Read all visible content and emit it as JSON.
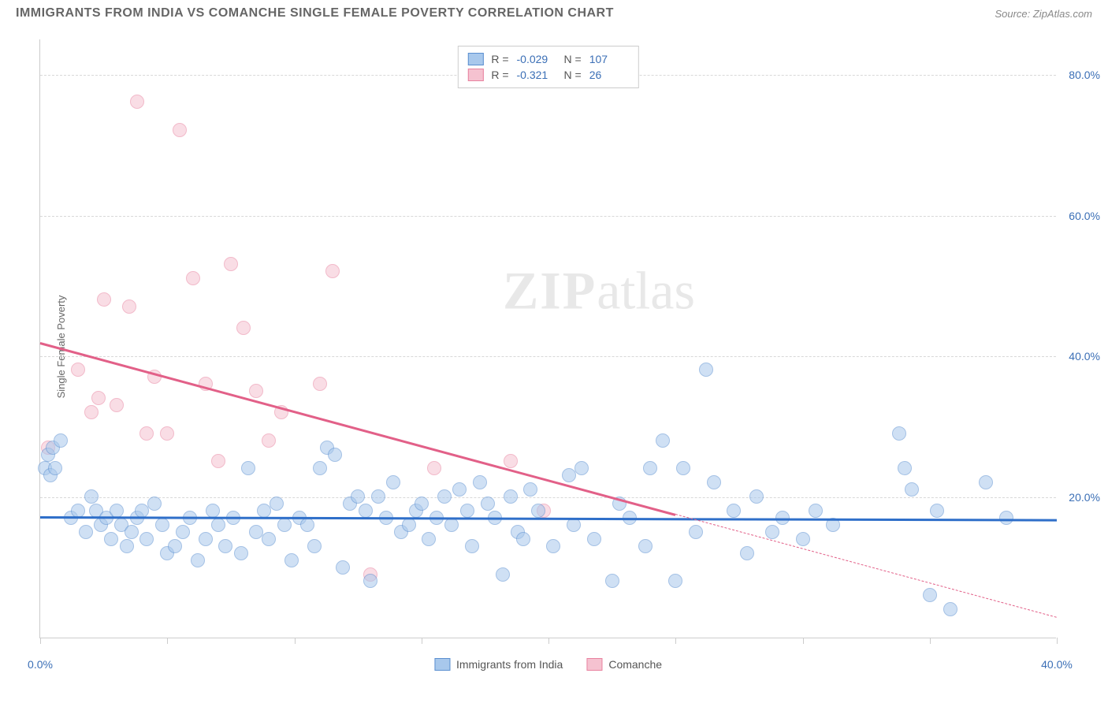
{
  "title": "IMMIGRANTS FROM INDIA VS COMANCHE SINGLE FEMALE POVERTY CORRELATION CHART",
  "source": "Source: ZipAtlas.com",
  "y_axis_label": "Single Female Poverty",
  "watermark_bold": "ZIP",
  "watermark_light": "atlas",
  "chart": {
    "type": "scatter",
    "xlim": [
      0,
      40
    ],
    "ylim": [
      0,
      85
    ],
    "x_ticks": [
      0,
      5,
      10,
      15,
      20,
      25,
      30,
      35,
      40
    ],
    "x_tick_labels": {
      "0": "0.0%",
      "40": "40.0%"
    },
    "y_ticks": [
      20,
      40,
      60,
      80
    ],
    "y_tick_labels": [
      "20.0%",
      "40.0%",
      "60.0%",
      "80.0%"
    ],
    "background_color": "#ffffff",
    "grid_color": "#d8d8d8",
    "axis_color": "#cccccc",
    "tick_label_color": "#3b6fb6",
    "marker_radius": 9,
    "marker_opacity": 0.55
  },
  "series": [
    {
      "name": "Immigrants from India",
      "R": "-0.029",
      "N": "107",
      "fill": "#a8c8ec",
      "stroke": "#5b8fd0",
      "line_color": "#2f6fc9",
      "trend": {
        "x1": 0,
        "y1": 17.3,
        "x2": 40,
        "y2": 16.9,
        "dash_from_x": 40
      },
      "points": [
        [
          0.2,
          24
        ],
        [
          0.3,
          26
        ],
        [
          0.4,
          23
        ],
        [
          0.5,
          27
        ],
        [
          0.6,
          24
        ],
        [
          0.8,
          28
        ],
        [
          1.2,
          17
        ],
        [
          1.5,
          18
        ],
        [
          1.8,
          15
        ],
        [
          2.0,
          20
        ],
        [
          2.2,
          18
        ],
        [
          2.4,
          16
        ],
        [
          2.6,
          17
        ],
        [
          2.8,
          14
        ],
        [
          3.0,
          18
        ],
        [
          3.2,
          16
        ],
        [
          3.4,
          13
        ],
        [
          3.6,
          15
        ],
        [
          3.8,
          17
        ],
        [
          4.0,
          18
        ],
        [
          4.2,
          14
        ],
        [
          4.5,
          19
        ],
        [
          4.8,
          16
        ],
        [
          5.0,
          12
        ],
        [
          5.3,
          13
        ],
        [
          5.6,
          15
        ],
        [
          5.9,
          17
        ],
        [
          6.2,
          11
        ],
        [
          6.5,
          14
        ],
        [
          6.8,
          18
        ],
        [
          7.0,
          16
        ],
        [
          7.3,
          13
        ],
        [
          7.6,
          17
        ],
        [
          7.9,
          12
        ],
        [
          8.2,
          24
        ],
        [
          8.5,
          15
        ],
        [
          8.8,
          18
        ],
        [
          9.0,
          14
        ],
        [
          9.3,
          19
        ],
        [
          9.6,
          16
        ],
        [
          9.9,
          11
        ],
        [
          10.2,
          17
        ],
        [
          10.5,
          16
        ],
        [
          10.8,
          13
        ],
        [
          11.0,
          24
        ],
        [
          11.3,
          27
        ],
        [
          11.6,
          26
        ],
        [
          11.9,
          10
        ],
        [
          12.2,
          19
        ],
        [
          12.5,
          20
        ],
        [
          12.8,
          18
        ],
        [
          13.0,
          8
        ],
        [
          13.3,
          20
        ],
        [
          13.6,
          17
        ],
        [
          13.9,
          22
        ],
        [
          14.2,
          15
        ],
        [
          14.5,
          16
        ],
        [
          14.8,
          18
        ],
        [
          15.0,
          19
        ],
        [
          15.3,
          14
        ],
        [
          15.6,
          17
        ],
        [
          15.9,
          20
        ],
        [
          16.2,
          16
        ],
        [
          16.5,
          21
        ],
        [
          16.8,
          18
        ],
        [
          17.0,
          13
        ],
        [
          17.3,
          22
        ],
        [
          17.6,
          19
        ],
        [
          17.9,
          17
        ],
        [
          18.2,
          9
        ],
        [
          18.5,
          20
        ],
        [
          18.8,
          15
        ],
        [
          19.0,
          14
        ],
        [
          19.3,
          21
        ],
        [
          19.6,
          18
        ],
        [
          20.2,
          13
        ],
        [
          20.8,
          23
        ],
        [
          21.0,
          16
        ],
        [
          21.3,
          24
        ],
        [
          21.8,
          14
        ],
        [
          22.5,
          8
        ],
        [
          22.8,
          19
        ],
        [
          23.2,
          17
        ],
        [
          23.8,
          13
        ],
        [
          24.0,
          24
        ],
        [
          24.5,
          28
        ],
        [
          25.0,
          8
        ],
        [
          25.3,
          24
        ],
        [
          25.8,
          15
        ],
        [
          26.2,
          38
        ],
        [
          26.5,
          22
        ],
        [
          27.3,
          18
        ],
        [
          27.8,
          12
        ],
        [
          28.2,
          20
        ],
        [
          28.8,
          15
        ],
        [
          29.2,
          17
        ],
        [
          30.0,
          14
        ],
        [
          30.5,
          18
        ],
        [
          31.2,
          16
        ],
        [
          33.8,
          29
        ],
        [
          34.0,
          24
        ],
        [
          34.3,
          21
        ],
        [
          35.0,
          6
        ],
        [
          35.3,
          18
        ],
        [
          35.8,
          4
        ],
        [
          37.2,
          22
        ],
        [
          38.0,
          17
        ]
      ]
    },
    {
      "name": "Comanche",
      "R": "-0.321",
      "N": "26",
      "fill": "#f5c2d0",
      "stroke": "#e8829f",
      "line_color": "#e26088",
      "trend": {
        "x1": 0,
        "y1": 42,
        "x2": 40,
        "y2": 3,
        "dash_from_x": 25
      },
      "points": [
        [
          0.3,
          27
        ],
        [
          1.5,
          38
        ],
        [
          2.0,
          32
        ],
        [
          2.3,
          34
        ],
        [
          2.5,
          48
        ],
        [
          3.0,
          33
        ],
        [
          3.5,
          47
        ],
        [
          3.8,
          76
        ],
        [
          4.2,
          29
        ],
        [
          4.5,
          37
        ],
        [
          5.0,
          29
        ],
        [
          5.5,
          72
        ],
        [
          6.0,
          51
        ],
        [
          6.5,
          36
        ],
        [
          7.0,
          25
        ],
        [
          7.5,
          53
        ],
        [
          8.0,
          44
        ],
        [
          8.5,
          35
        ],
        [
          9.0,
          28
        ],
        [
          9.5,
          32
        ],
        [
          11.0,
          36
        ],
        [
          11.5,
          52
        ],
        [
          13.0,
          9
        ],
        [
          15.5,
          24
        ],
        [
          18.5,
          25
        ],
        [
          19.8,
          18
        ]
      ]
    }
  ],
  "stats_legend_label_R": "R =",
  "stats_legend_label_N": "N ="
}
